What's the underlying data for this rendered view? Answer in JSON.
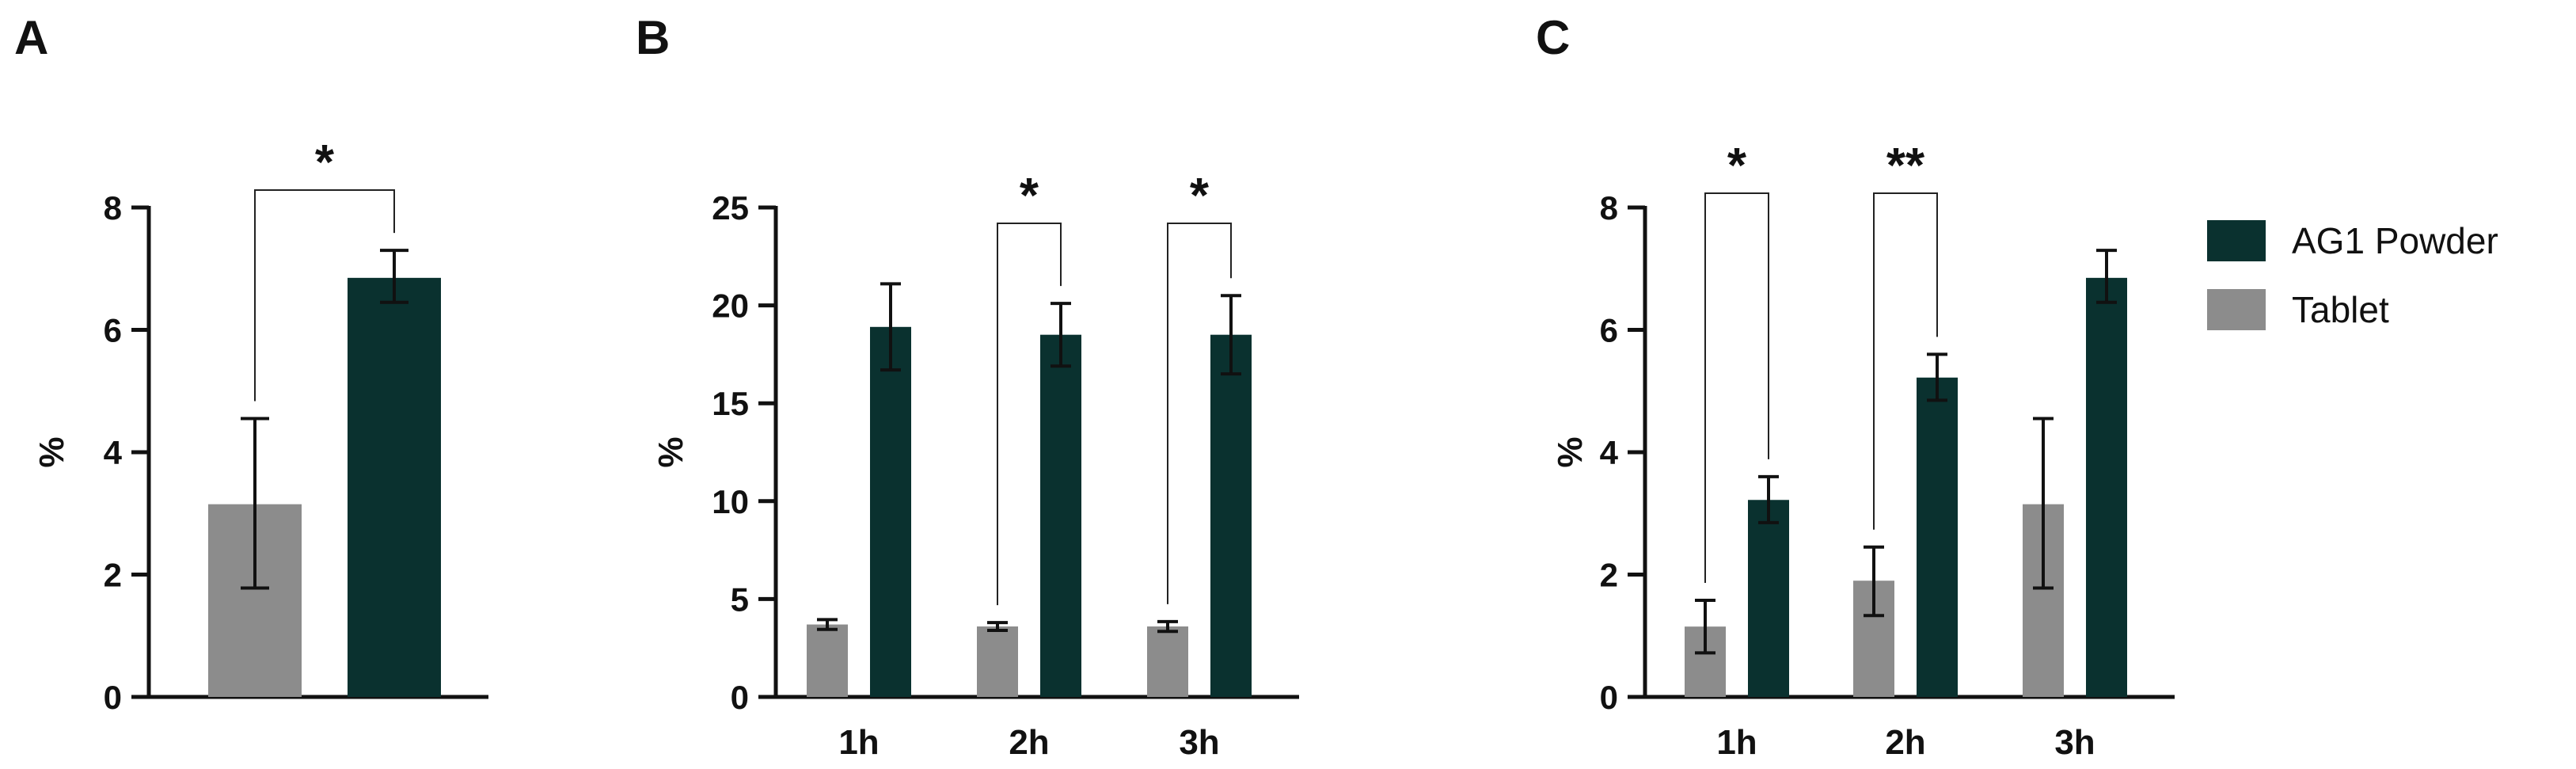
{
  "colors": {
    "tablet": "#8c8c8c",
    "powder": "#0a312f",
    "axis": "#111111"
  },
  "legend": [
    {
      "label": "AG1 Powder",
      "color": "#0a312f"
    },
    {
      "label": "Tablet",
      "color": "#8c8c8c"
    }
  ],
  "chart_data": [
    {
      "panel": "A",
      "type": "bar",
      "ylabel": "%",
      "ylim": [
        0,
        8
      ],
      "yticks": [
        0,
        2,
        4,
        6,
        8
      ],
      "categories": [
        ""
      ],
      "series": [
        {
          "name": "Tablet",
          "values": [
            3.15
          ],
          "err_low": [
            1.78
          ],
          "err_high": [
            4.55
          ]
        },
        {
          "name": "AG1 Powder",
          "values": [
            6.85
          ],
          "err_low": [
            6.45
          ],
          "err_high": [
            7.3
          ]
        }
      ],
      "significance": [
        {
          "category": 0,
          "label": "*"
        }
      ]
    },
    {
      "panel": "B",
      "type": "bar",
      "ylabel": "%",
      "ylim": [
        0,
        25
      ],
      "yticks": [
        0,
        5,
        10,
        15,
        20,
        25
      ],
      "categories": [
        "1h",
        "2h",
        "3h"
      ],
      "series": [
        {
          "name": "Tablet",
          "values": [
            3.7,
            3.6,
            3.6
          ],
          "err_low": [
            3.45,
            3.4,
            3.35
          ],
          "err_high": [
            3.95,
            3.8,
            3.85
          ]
        },
        {
          "name": "AG1 Powder",
          "values": [
            18.9,
            18.5,
            18.5
          ],
          "err_low": [
            16.7,
            16.9,
            16.5
          ],
          "err_high": [
            21.1,
            20.1,
            20.5
          ]
        }
      ],
      "significance": [
        {
          "category": 1,
          "label": "*"
        },
        {
          "category": 2,
          "label": "*"
        }
      ]
    },
    {
      "panel": "C",
      "type": "bar",
      "ylabel": "%",
      "ylim": [
        0,
        8
      ],
      "yticks": [
        0,
        2,
        4,
        6,
        8
      ],
      "categories": [
        "1h",
        "2h",
        "3h"
      ],
      "series": [
        {
          "name": "Tablet",
          "values": [
            1.15,
            1.9,
            3.15
          ],
          "err_low": [
            0.72,
            1.33,
            1.78
          ],
          "err_high": [
            1.58,
            2.45,
            4.55
          ]
        },
        {
          "name": "AG1 Powder",
          "values": [
            3.22,
            5.22,
            6.85
          ],
          "err_low": [
            2.85,
            4.85,
            6.45
          ],
          "err_high": [
            3.6,
            5.6,
            7.3
          ]
        }
      ],
      "significance": [
        {
          "category": 0,
          "label": "*"
        },
        {
          "category": 1,
          "label": "**"
        }
      ]
    }
  ]
}
